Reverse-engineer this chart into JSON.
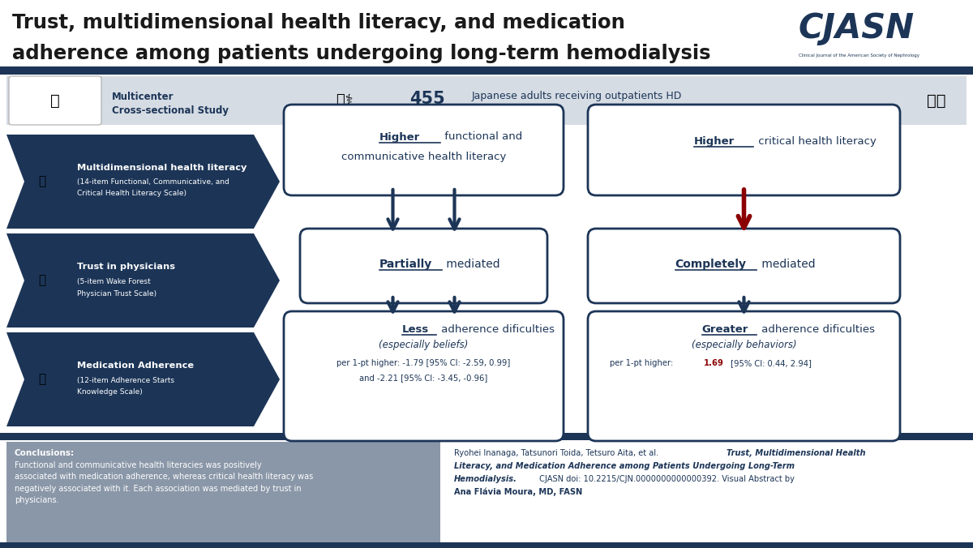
{
  "title_line1": "Trust, multidimensional health literacy, and medication",
  "title_line2": "adherence among patients undergoing long-term hemodialysis",
  "title_color": "#1a1a1a",
  "title_bg": "#ffffff",
  "header_bg": "#d6dce4",
  "dark_navy": "#1c3557",
  "red_color": "#8b0000",
  "study_type_line1": "Multicenter",
  "study_type_line2": "Cross-sectional Study",
  "sample": "455",
  "sample_desc": "Japanese adults receiving outpatients HD",
  "left_items": [
    {
      "title": "Multidimensional health literacy",
      "subtitle_line1": "(14-item Functional, Communicative, and",
      "subtitle_line2": "Critical Health Literacy Scale)"
    },
    {
      "title": "Trust in physicians",
      "subtitle_line1": "(5-item Wake Forest",
      "subtitle_line2": "Physician Trust Scale)"
    },
    {
      "title": "Medication Adherence",
      "subtitle_line1": "(12-item Adherence Starts",
      "subtitle_line2": "Knowledge Scale)"
    }
  ],
  "cjasn_color": "#1c3557",
  "white_box_bg": "#ffffff",
  "conclusions_bg": "#8a97a8"
}
